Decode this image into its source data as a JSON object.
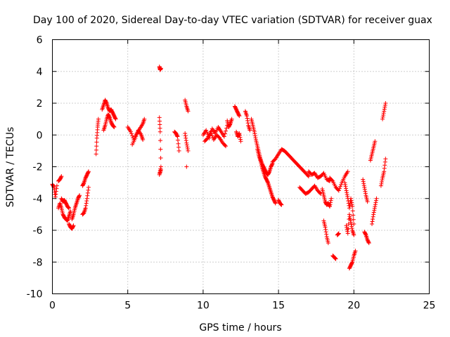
{
  "chart_data": {
    "type": "scatter",
    "title": "Day 100 of 2020, Sidereal Day-to-day VTEC variation (SDTVAR) for receiver guax",
    "xlabel": "GPS time / hours",
    "ylabel": "SDTVAR / TECUs",
    "xlim": [
      0,
      25
    ],
    "ylim": [
      -10,
      6
    ],
    "xticks": [
      0,
      5,
      10,
      15,
      20,
      25
    ],
    "yticks": [
      -10,
      -8,
      -6,
      -4,
      -2,
      0,
      2,
      4,
      6
    ],
    "grid": true,
    "marker": "+",
    "color": "#ff0000",
    "segments": [
      {
        "x": [
          0.0,
          0.1,
          0.2,
          0.3
        ],
        "y": [
          -3.1,
          -3.3,
          -3.9,
          -3.2
        ]
      },
      {
        "x": [
          0.4,
          0.5,
          0.6
        ],
        "y": [
          -2.9,
          -2.8,
          -2.6
        ]
      },
      {
        "x": [
          0.4,
          0.5,
          0.6,
          0.7,
          0.8,
          0.9,
          1.0,
          1.1,
          1.2
        ],
        "y": [
          -4.6,
          -4.3,
          -4.6,
          -5.0,
          -5.2,
          -5.3,
          -5.4,
          -5.1,
          -4.8
        ]
      },
      {
        "x": [
          0.6,
          0.7,
          0.8,
          0.9,
          1.0,
          1.1
        ],
        "y": [
          -4.0,
          -4.2,
          -4.1,
          -4.3,
          -4.5,
          -4.6
        ]
      },
      {
        "x": [
          1.1,
          1.2,
          1.3,
          1.4
        ],
        "y": [
          -5.6,
          -5.8,
          -5.9,
          -5.7
        ]
      },
      {
        "x": [
          1.3,
          1.4,
          1.5,
          1.6,
          1.7,
          1.8
        ],
        "y": [
          -5.3,
          -5.0,
          -4.6,
          -4.3,
          -4.0,
          -3.8
        ]
      },
      {
        "x": [
          2.0,
          2.1,
          2.2,
          2.3,
          2.4
        ],
        "y": [
          -5.0,
          -4.9,
          -4.6,
          -4.0,
          -3.3
        ]
      },
      {
        "x": [
          2.0,
          2.1,
          2.2,
          2.3,
          2.4
        ],
        "y": [
          -3.2,
          -3.0,
          -2.7,
          -2.5,
          -2.3
        ]
      },
      {
        "x": [
          2.9,
          2.95,
          3.0,
          3.05
        ],
        "y": [
          -1.2,
          -0.2,
          0.5,
          1.0
        ]
      },
      {
        "x": [
          3.3,
          3.4,
          3.5,
          3.6,
          3.7,
          3.8,
          3.9,
          4.0,
          4.1,
          4.2
        ],
        "y": [
          1.6,
          1.9,
          2.2,
          2.0,
          1.7,
          1.5,
          1.6,
          1.4,
          1.2,
          1.0
        ]
      },
      {
        "x": [
          3.4,
          3.5,
          3.6,
          3.7,
          3.8,
          3.9,
          4.0,
          4.1
        ],
        "y": [
          0.3,
          0.6,
          1.0,
          1.3,
          1.1,
          0.8,
          0.6,
          0.5
        ]
      },
      {
        "x": [
          5.0,
          5.2,
          5.4,
          5.6,
          5.8,
          6.0,
          6.1
        ],
        "y": [
          0.5,
          0.2,
          -0.3,
          0.1,
          0.4,
          0.7,
          1.0
        ]
      },
      {
        "x": [
          5.3,
          5.5,
          5.7,
          5.9,
          6.0
        ],
        "y": [
          -0.6,
          -0.2,
          0.3,
          0.0,
          -0.3
        ]
      },
      {
        "x": [
          7.1,
          7.15,
          7.2
        ],
        "y": [
          4.3,
          4.1,
          4.2
        ]
      },
      {
        "x": [
          7.1,
          7.15,
          7.2,
          7.1,
          7.2
        ],
        "y": [
          1.1,
          0.2,
          -2.0,
          -2.5,
          -2.2
        ]
      },
      {
        "x": [
          8.1,
          8.2,
          8.3,
          8.4
        ],
        "y": [
          0.2,
          0.1,
          -0.1,
          -1.0
        ]
      },
      {
        "x": [
          8.8,
          8.9,
          9.0
        ],
        "y": [
          2.2,
          1.8,
          1.5
        ]
      },
      {
        "x": [
          8.8,
          8.9,
          9.0
        ],
        "y": [
          0.1,
          -0.5,
          -1.0
        ]
      },
      {
        "x": [
          8.9
        ],
        "y": [
          -2.0
        ]
      },
      {
        "x": [
          10.0,
          10.2,
          10.4,
          10.6,
          10.8,
          11.0,
          11.2,
          11.4,
          11.6
        ],
        "y": [
          0.0,
          0.3,
          -0.2,
          0.4,
          0.1,
          0.5,
          0.2,
          -0.1,
          0.6
        ]
      },
      {
        "x": [
          10.1,
          10.3,
          10.5,
          10.7,
          10.9,
          11.1,
          11.3,
          11.5
        ],
        "y": [
          -0.4,
          -0.2,
          0.2,
          -0.3,
          0.0,
          -0.2,
          -0.5,
          -0.7
        ]
      },
      {
        "x": [
          11.6,
          11.7,
          11.8,
          11.9
        ],
        "y": [
          0.9,
          0.5,
          0.7,
          1.0
        ]
      },
      {
        "x": [
          12.1,
          12.2,
          12.3,
          12.4
        ],
        "y": [
          1.8,
          1.6,
          1.4,
          1.2
        ]
      },
      {
        "x": [
          12.2,
          12.3,
          12.4,
          12.5
        ],
        "y": [
          0.2,
          -0.1,
          0.1,
          -0.4
        ]
      },
      {
        "x": [
          12.8,
          12.9,
          13.0,
          13.1
        ],
        "y": [
          1.5,
          1.2,
          0.6,
          0.3
        ]
      },
      {
        "x": [
          13.2,
          13.3,
          13.4,
          13.5,
          13.6,
          13.7,
          13.8,
          13.9,
          14.0,
          14.1,
          14.2,
          14.3,
          14.4,
          14.5,
          14.6
        ],
        "y": [
          1.0,
          0.6,
          0.2,
          -0.3,
          -0.7,
          -1.1,
          -1.5,
          -1.8,
          -2.0,
          -2.2,
          -2.4,
          -2.5,
          -2.3,
          -2.0,
          -1.8
        ]
      },
      {
        "x": [
          13.6,
          13.7,
          13.8,
          13.9,
          14.0,
          14.1,
          14.2,
          14.3,
          14.4,
          14.5,
          14.6,
          14.7,
          14.8
        ],
        "y": [
          -0.9,
          -1.3,
          -1.6,
          -2.0,
          -2.3,
          -2.6,
          -2.8,
          -3.0,
          -3.3,
          -3.6,
          -3.9,
          -4.1,
          -4.3
        ]
      },
      {
        "x": [
          15.0,
          15.1,
          15.2
        ],
        "y": [
          -4.1,
          -4.3,
          -4.4
        ]
      },
      {
        "x": [
          14.6,
          14.8,
          15.0,
          15.2,
          15.4,
          15.6,
          15.8,
          16.0,
          16.2,
          16.4,
          16.6,
          16.8,
          17.0
        ],
        "y": [
          -1.7,
          -1.5,
          -1.2,
          -0.9,
          -1.0,
          -1.2,
          -1.4,
          -1.6,
          -1.8,
          -2.0,
          -2.2,
          -2.4,
          -2.6
        ]
      },
      {
        "x": [
          16.4,
          16.6,
          16.8,
          17.0,
          17.2,
          17.4,
          17.6,
          17.8
        ],
        "y": [
          -3.3,
          -3.5,
          -3.7,
          -3.6,
          -3.4,
          -3.2,
          -3.5,
          -3.7
        ]
      },
      {
        "x": [
          17.0,
          17.2,
          17.4,
          17.6,
          17.8,
          18.0,
          18.2,
          18.4
        ],
        "y": [
          -2.3,
          -2.5,
          -2.4,
          -2.7,
          -2.6,
          -2.4,
          -2.8,
          -2.9
        ]
      },
      {
        "x": [
          17.9,
          18.0,
          18.1,
          18.2,
          18.3,
          18.4,
          18.5
        ],
        "y": [
          -3.4,
          -3.8,
          -4.2,
          -4.4,
          -4.3,
          -4.5,
          -4.0
        ]
      },
      {
        "x": [
          18.4,
          18.6,
          18.8,
          19.0,
          19.2,
          19.4,
          19.6
        ],
        "y": [
          -2.7,
          -2.9,
          -3.3,
          -3.5,
          -3.0,
          -2.6,
          -2.3
        ]
      },
      {
        "x": [
          18.0,
          18.1,
          18.2,
          18.3
        ],
        "y": [
          -5.4,
          -5.8,
          -6.4,
          -6.8
        ]
      },
      {
        "x": [
          18.6,
          18.7,
          18.8
        ],
        "y": [
          -7.6,
          -7.7,
          -7.8
        ]
      },
      {
        "x": [
          18.9,
          19.0
        ],
        "y": [
          -6.3,
          -6.2
        ]
      },
      {
        "x": [
          19.4,
          19.5,
          19.6,
          19.7,
          19.8,
          19.9,
          20.0
        ],
        "y": [
          -3.0,
          -3.5,
          -4.0,
          -4.6,
          -4.0,
          -4.5,
          -5.6
        ]
      },
      {
        "x": [
          19.5,
          19.6,
          19.7,
          19.8,
          19.9,
          20.0
        ],
        "y": [
          -5.7,
          -6.2,
          -5.0,
          -5.5,
          -6.0,
          -6.3
        ]
      },
      {
        "x": [
          19.7,
          19.8,
          19.9,
          20.0,
          20.1
        ],
        "y": [
          -8.4,
          -8.2,
          -8.0,
          -7.6,
          -7.3
        ]
      },
      {
        "x": [
          20.6,
          20.7,
          20.8,
          20.9
        ],
        "y": [
          -2.8,
          -3.3,
          -3.8,
          -4.2
        ]
      },
      {
        "x": [
          20.7,
          20.8,
          20.9,
          21.0
        ],
        "y": [
          -6.1,
          -6.3,
          -6.6,
          -6.8
        ]
      },
      {
        "x": [
          21.1,
          21.2,
          21.3,
          21.4
        ],
        "y": [
          -1.6,
          -1.2,
          -0.8,
          -0.4
        ]
      },
      {
        "x": [
          21.2,
          21.3,
          21.4,
          21.5
        ],
        "y": [
          -5.6,
          -5.0,
          -4.5,
          -4.0
        ]
      },
      {
        "x": [
          21.8,
          21.9,
          22.0,
          22.1
        ],
        "y": [
          -3.2,
          -2.7,
          -2.3,
          -1.5
        ]
      },
      {
        "x": [
          21.9,
          22.0,
          22.1
        ],
        "y": [
          1.0,
          1.5,
          2.0
        ]
      }
    ]
  }
}
